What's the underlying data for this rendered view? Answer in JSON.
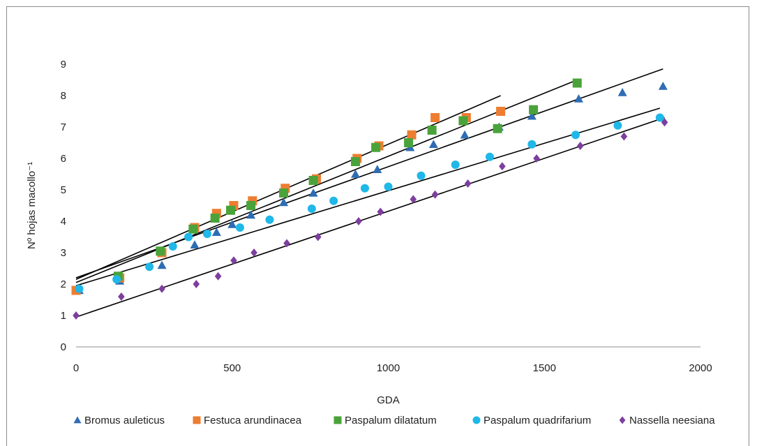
{
  "chart_data": {
    "type": "scatter",
    "xlabel": "GDA",
    "ylabel": "Nº hojas macollo⁻¹",
    "xlim": [
      0,
      2000
    ],
    "ylim": [
      0,
      9
    ],
    "xticks": [
      "0",
      "500",
      "1000",
      "1500",
      "2000"
    ],
    "yticks": [
      "0",
      "1",
      "2",
      "3",
      "4",
      "5",
      "6",
      "7",
      "8",
      "9"
    ],
    "grid": false,
    "legend_position": "bottom",
    "series": [
      {
        "name": "Bromus auleticus",
        "marker": "triangle",
        "color": "#2e6db4",
        "points": [
          [
            10,
            1.8
          ],
          [
            140,
            2.1
          ],
          [
            275,
            2.6
          ],
          [
            380,
            3.25
          ],
          [
            450,
            3.65
          ],
          [
            500,
            3.9
          ],
          [
            560,
            4.2
          ],
          [
            665,
            4.6
          ],
          [
            760,
            4.9
          ],
          [
            895,
            5.5
          ],
          [
            965,
            5.65
          ],
          [
            1070,
            6.35
          ],
          [
            1145,
            6.45
          ],
          [
            1245,
            6.75
          ],
          [
            1355,
            7.0
          ],
          [
            1460,
            7.35
          ],
          [
            1610,
            7.9
          ],
          [
            1750,
            8.1
          ],
          [
            1880,
            8.3
          ]
        ],
        "trend": [
          [
            0,
            2.2
          ],
          [
            1880,
            8.85
          ]
        ]
      },
      {
        "name": "Festuca arundinacea",
        "marker": "square",
        "color": "#ed7d31",
        "points": [
          [
            0,
            1.8
          ],
          [
            140,
            2.2
          ],
          [
            275,
            3.0
          ],
          [
            380,
            3.8
          ],
          [
            450,
            4.25
          ],
          [
            505,
            4.5
          ],
          [
            565,
            4.65
          ],
          [
            670,
            5.05
          ],
          [
            770,
            5.35
          ],
          [
            900,
            6.0
          ],
          [
            970,
            6.4
          ],
          [
            1075,
            6.75
          ],
          [
            1150,
            7.3
          ],
          [
            1250,
            7.3
          ],
          [
            1360,
            7.5
          ]
        ],
        "trend": [
          [
            0,
            2.15
          ],
          [
            1360,
            8.0
          ]
        ]
      },
      {
        "name": "Paspalum dilatatum",
        "marker": "square",
        "color": "#4aa33a",
        "points": [
          [
            135,
            2.25
          ],
          [
            270,
            3.05
          ],
          [
            375,
            3.75
          ],
          [
            445,
            4.1
          ],
          [
            495,
            4.35
          ],
          [
            560,
            4.5
          ],
          [
            665,
            4.9
          ],
          [
            760,
            5.3
          ],
          [
            895,
            5.9
          ],
          [
            960,
            6.35
          ],
          [
            1065,
            6.5
          ],
          [
            1140,
            6.9
          ],
          [
            1240,
            7.2
          ],
          [
            1350,
            6.95
          ],
          [
            1465,
            7.55
          ],
          [
            1605,
            8.4
          ]
        ],
        "trend": [
          [
            0,
            2.05
          ],
          [
            1605,
            8.5
          ]
        ]
      },
      {
        "name": "Paspalum quadrifarium",
        "marker": "circle",
        "color": "#1fb8e8",
        "points": [
          [
            10,
            1.85
          ],
          [
            130,
            2.15
          ],
          [
            235,
            2.55
          ],
          [
            310,
            3.2
          ],
          [
            360,
            3.5
          ],
          [
            420,
            3.6
          ],
          [
            525,
            3.8
          ],
          [
            620,
            4.05
          ],
          [
            755,
            4.4
          ],
          [
            825,
            4.65
          ],
          [
            925,
            5.05
          ],
          [
            1000,
            5.1
          ],
          [
            1105,
            5.45
          ],
          [
            1215,
            5.8
          ],
          [
            1325,
            6.05
          ],
          [
            1460,
            6.45
          ],
          [
            1600,
            6.75
          ],
          [
            1735,
            7.05
          ],
          [
            1870,
            7.3
          ]
        ],
        "trend": [
          [
            0,
            1.95
          ],
          [
            1870,
            7.6
          ]
        ]
      },
      {
        "name": "Nassella neesiana",
        "marker": "diamond",
        "color": "#7d3f9e",
        "points": [
          [
            0,
            1.0
          ],
          [
            145,
            1.6
          ],
          [
            275,
            1.85
          ],
          [
            385,
            2.0
          ],
          [
            455,
            2.25
          ],
          [
            505,
            2.75
          ],
          [
            570,
            3.0
          ],
          [
            675,
            3.3
          ],
          [
            775,
            3.5
          ],
          [
            905,
            4.0
          ],
          [
            975,
            4.3
          ],
          [
            1080,
            4.7
          ],
          [
            1150,
            4.85
          ],
          [
            1255,
            5.2
          ],
          [
            1365,
            5.75
          ],
          [
            1475,
            6.0
          ],
          [
            1615,
            6.4
          ],
          [
            1755,
            6.7
          ],
          [
            1885,
            7.15
          ]
        ],
        "trend": [
          [
            0,
            0.95
          ],
          [
            1885,
            7.3
          ]
        ]
      }
    ]
  }
}
